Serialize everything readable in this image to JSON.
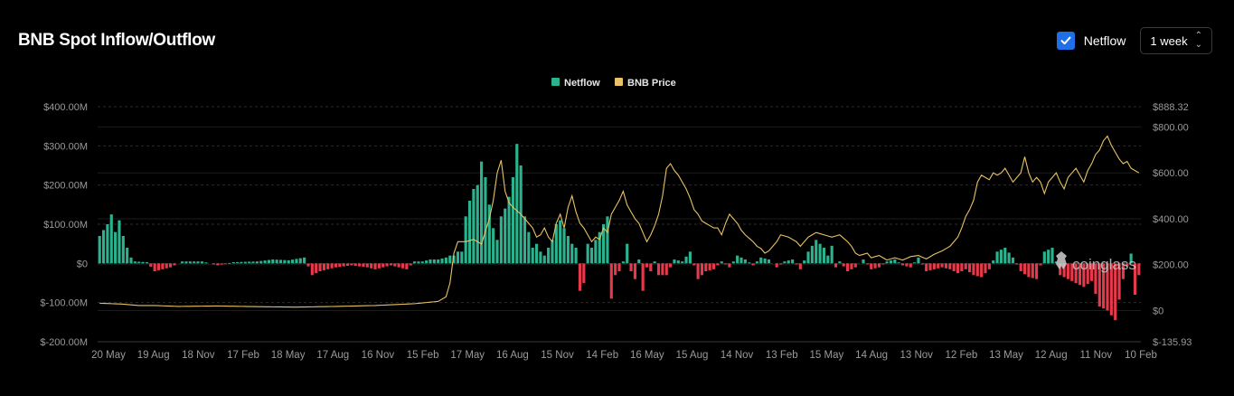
{
  "header": {
    "title": "BNB Spot Inflow/Outflow",
    "netflow_toggle_label": "Netflow",
    "netflow_checked": true,
    "interval_value": "1 week"
  },
  "colors": {
    "background": "#000000",
    "positive": "#2bb38f",
    "negative": "#e8394b",
    "price": "#e8c265",
    "grid": "#2c2c2c",
    "axis_text": "#9a9a9a",
    "checkbox": "#1f6fe8"
  },
  "watermark": "coinglass",
  "chart_data": {
    "type": "bar",
    "legend": [
      {
        "name": "Netflow",
        "color": "#2bb38f"
      },
      {
        "name": "BNB Price",
        "color": "#e8c265"
      }
    ],
    "legend_position": "top-center",
    "grid": true,
    "x_tick_labels": [
      "20 May",
      "19 Aug",
      "18 Nov",
      "17 Feb",
      "18 May",
      "17 Aug",
      "16 Nov",
      "15 Feb",
      "17 May",
      "16 Aug",
      "15 Nov",
      "14 Feb",
      "16 May",
      "15 Aug",
      "14 Nov",
      "13 Feb",
      "15 May",
      "14 Aug",
      "13 Nov",
      "12 Feb",
      "13 May",
      "12 Aug",
      "11 Nov",
      "10 Feb"
    ],
    "y_left": {
      "ticks": [
        "$400.00M",
        "$300.00M",
        "$200.00M",
        "$100.00M",
        "$0",
        "$-100.00M",
        "$-200.00M"
      ],
      "min": -200,
      "max": 400,
      "unit": "M USD"
    },
    "y_right": {
      "ticks": [
        "$888.32",
        "$800.00",
        "$600.00",
        "$400.00",
        "$200.00",
        "$0",
        "$-135.93"
      ],
      "min": -135.93,
      "max": 888.32
    },
    "series": [
      {
        "name": "Netflow",
        "type": "bar",
        "unit": "M USD",
        "anchors": [
          [
            0,
            70
          ],
          [
            2,
            100
          ],
          [
            3,
            125
          ],
          [
            4,
            80
          ],
          [
            5,
            110
          ],
          [
            6,
            70
          ],
          [
            7,
            40
          ],
          [
            8,
            15
          ],
          [
            9,
            5
          ],
          [
            12,
            3
          ],
          [
            14,
            -20
          ],
          [
            18,
            -10
          ],
          [
            21,
            5
          ],
          [
            26,
            5
          ],
          [
            30,
            -5
          ],
          [
            34,
            3
          ],
          [
            40,
            5
          ],
          [
            44,
            10
          ],
          [
            48,
            8
          ],
          [
            52,
            15
          ],
          [
            54,
            -30
          ],
          [
            56,
            -20
          ],
          [
            60,
            -10
          ],
          [
            64,
            -5
          ],
          [
            68,
            -10
          ],
          [
            70,
            -15
          ],
          [
            72,
            -10
          ],
          [
            74,
            -5
          ],
          [
            76,
            -10
          ],
          [
            78,
            -15
          ],
          [
            80,
            5
          ],
          [
            82,
            5
          ],
          [
            84,
            10
          ],
          [
            86,
            10
          ],
          [
            88,
            15
          ],
          [
            89,
            20
          ],
          [
            90,
            20
          ],
          [
            91,
            30
          ],
          [
            92,
            30
          ],
          [
            93,
            120
          ],
          [
            94,
            160
          ],
          [
            95,
            190
          ],
          [
            96,
            200
          ],
          [
            97,
            260
          ],
          [
            98,
            220
          ],
          [
            99,
            150
          ],
          [
            100,
            90
          ],
          [
            101,
            60
          ],
          [
            102,
            120
          ],
          [
            103,
            140
          ],
          [
            104,
            170
          ],
          [
            105,
            220
          ],
          [
            106,
            305
          ],
          [
            107,
            250
          ],
          [
            108,
            120
          ],
          [
            109,
            80
          ],
          [
            110,
            40
          ],
          [
            111,
            50
          ],
          [
            112,
            30
          ],
          [
            113,
            20
          ],
          [
            114,
            40
          ],
          [
            115,
            60
          ],
          [
            116,
            100
          ],
          [
            117,
            110
          ],
          [
            118,
            90
          ],
          [
            119,
            70
          ],
          [
            120,
            50
          ],
          [
            121,
            40
          ],
          [
            122,
            -70
          ],
          [
            123,
            -50
          ],
          [
            124,
            50
          ],
          [
            125,
            40
          ],
          [
            126,
            60
          ],
          [
            127,
            80
          ],
          [
            128,
            100
          ],
          [
            129,
            120
          ],
          [
            130,
            -90
          ],
          [
            131,
            -30
          ],
          [
            132,
            -20
          ],
          [
            133,
            5
          ],
          [
            134,
            50
          ],
          [
            135,
            -20
          ],
          [
            136,
            -40
          ],
          [
            137,
            10
          ],
          [
            138,
            -70
          ],
          [
            139,
            -10
          ],
          [
            140,
            -20
          ],
          [
            141,
            5
          ],
          [
            142,
            -30
          ],
          [
            144,
            -30
          ],
          [
            146,
            10
          ],
          [
            148,
            5
          ],
          [
            150,
            30
          ],
          [
            152,
            -40
          ],
          [
            154,
            -20
          ],
          [
            156,
            -15
          ],
          [
            158,
            5
          ],
          [
            160,
            -10
          ],
          [
            162,
            20
          ],
          [
            164,
            10
          ],
          [
            166,
            -5
          ],
          [
            168,
            15
          ],
          [
            170,
            10
          ],
          [
            172,
            -10
          ],
          [
            174,
            5
          ],
          [
            176,
            10
          ],
          [
            178,
            -15
          ],
          [
            180,
            30
          ],
          [
            182,
            60
          ],
          [
            184,
            40
          ],
          [
            185,
            20
          ],
          [
            186,
            45
          ],
          [
            187,
            -10
          ],
          [
            188,
            5
          ],
          [
            190,
            -20
          ],
          [
            192,
            -10
          ],
          [
            194,
            10
          ],
          [
            196,
            -15
          ],
          [
            198,
            -10
          ],
          [
            200,
            5
          ],
          [
            202,
            10
          ],
          [
            204,
            -5
          ],
          [
            206,
            -10
          ],
          [
            208,
            15
          ],
          [
            210,
            -20
          ],
          [
            212,
            -15
          ],
          [
            214,
            -10
          ],
          [
            216,
            -15
          ],
          [
            218,
            -25
          ],
          [
            220,
            -15
          ],
          [
            222,
            -30
          ],
          [
            224,
            -35
          ],
          [
            226,
            -15
          ],
          [
            228,
            30
          ],
          [
            230,
            40
          ],
          [
            232,
            15
          ],
          [
            234,
            -20
          ],
          [
            236,
            -35
          ],
          [
            238,
            -40
          ],
          [
            240,
            30
          ],
          [
            242,
            40
          ],
          [
            244,
            -30
          ],
          [
            246,
            -40
          ],
          [
            248,
            -50
          ],
          [
            250,
            -60
          ],
          [
            252,
            -45
          ],
          [
            254,
            -110
          ],
          [
            256,
            -120
          ],
          [
            258,
            -145
          ],
          [
            260,
            -40
          ],
          [
            262,
            25
          ],
          [
            263,
            -80
          ],
          [
            264,
            -30
          ]
        ]
      },
      {
        "name": "BNB Price",
        "type": "line",
        "unit": "USD",
        "anchors": [
          [
            0,
            32
          ],
          [
            6,
            28
          ],
          [
            10,
            22
          ],
          [
            14,
            22
          ],
          [
            20,
            18
          ],
          [
            30,
            20
          ],
          [
            40,
            17
          ],
          [
            50,
            15
          ],
          [
            60,
            18
          ],
          [
            70,
            22
          ],
          [
            80,
            30
          ],
          [
            86,
            40
          ],
          [
            88,
            60
          ],
          [
            89,
            120
          ],
          [
            90,
            250
          ],
          [
            91,
            300
          ],
          [
            93,
            300
          ],
          [
            95,
            310
          ],
          [
            97,
            290
          ],
          [
            99,
            400
          ],
          [
            100,
            480
          ],
          [
            101,
            600
          ],
          [
            102,
            655
          ],
          [
            103,
            520
          ],
          [
            104,
            470
          ],
          [
            105,
            450
          ],
          [
            107,
            420
          ],
          [
            109,
            380
          ],
          [
            110,
            360
          ],
          [
            111,
            320
          ],
          [
            112,
            330
          ],
          [
            113,
            360
          ],
          [
            114,
            320
          ],
          [
            115,
            300
          ],
          [
            116,
            380
          ],
          [
            117,
            420
          ],
          [
            118,
            360
          ],
          [
            119,
            450
          ],
          [
            120,
            500
          ],
          [
            121,
            430
          ],
          [
            122,
            380
          ],
          [
            123,
            360
          ],
          [
            124,
            330
          ],
          [
            125,
            300
          ],
          [
            126,
            320
          ],
          [
            127,
            310
          ],
          [
            128,
            360
          ],
          [
            129,
            340
          ],
          [
            130,
            420
          ],
          [
            131,
            450
          ],
          [
            132,
            480
          ],
          [
            133,
            520
          ],
          [
            134,
            460
          ],
          [
            135,
            430
          ],
          [
            136,
            400
          ],
          [
            137,
            380
          ],
          [
            138,
            340
          ],
          [
            139,
            300
          ],
          [
            140,
            330
          ],
          [
            141,
            370
          ],
          [
            142,
            420
          ],
          [
            143,
            500
          ],
          [
            144,
            620
          ],
          [
            145,
            640
          ],
          [
            146,
            610
          ],
          [
            147,
            590
          ],
          [
            148,
            560
          ],
          [
            149,
            530
          ],
          [
            150,
            490
          ],
          [
            151,
            440
          ],
          [
            152,
            420
          ],
          [
            153,
            390
          ],
          [
            154,
            380
          ],
          [
            155,
            370
          ],
          [
            156,
            360
          ],
          [
            157,
            360
          ],
          [
            158,
            330
          ],
          [
            159,
            380
          ],
          [
            160,
            420
          ],
          [
            161,
            400
          ],
          [
            162,
            380
          ],
          [
            163,
            350
          ],
          [
            164,
            330
          ],
          [
            166,
            300
          ],
          [
            167,
            280
          ],
          [
            168,
            270
          ],
          [
            169,
            250
          ],
          [
            170,
            260
          ],
          [
            171,
            280
          ],
          [
            172,
            300
          ],
          [
            173,
            330
          ],
          [
            175,
            320
          ],
          [
            177,
            300
          ],
          [
            178,
            280
          ],
          [
            180,
            320
          ],
          [
            182,
            340
          ],
          [
            184,
            330
          ],
          [
            186,
            320
          ],
          [
            188,
            330
          ],
          [
            190,
            300
          ],
          [
            191,
            280
          ],
          [
            192,
            250
          ],
          [
            193,
            240
          ],
          [
            195,
            250
          ],
          [
            196,
            230
          ],
          [
            198,
            240
          ],
          [
            200,
            220
          ],
          [
            202,
            230
          ],
          [
            204,
            220
          ],
          [
            206,
            235
          ],
          [
            208,
            240
          ],
          [
            210,
            225
          ],
          [
            212,
            245
          ],
          [
            214,
            260
          ],
          [
            216,
            280
          ],
          [
            217,
            300
          ],
          [
            218,
            320
          ],
          [
            219,
            360
          ],
          [
            220,
            410
          ],
          [
            221,
            440
          ],
          [
            222,
            480
          ],
          [
            223,
            560
          ],
          [
            224,
            590
          ],
          [
            225,
            580
          ],
          [
            226,
            570
          ],
          [
            227,
            600
          ],
          [
            228,
            590
          ],
          [
            229,
            600
          ],
          [
            230,
            620
          ],
          [
            231,
            590
          ],
          [
            232,
            560
          ],
          [
            233,
            580
          ],
          [
            234,
            600
          ],
          [
            235,
            670
          ],
          [
            236,
            600
          ],
          [
            237,
            560
          ],
          [
            238,
            580
          ],
          [
            239,
            560
          ],
          [
            240,
            510
          ],
          [
            241,
            560
          ],
          [
            242,
            580
          ],
          [
            243,
            600
          ],
          [
            244,
            560
          ],
          [
            245,
            530
          ],
          [
            246,
            580
          ],
          [
            247,
            600
          ],
          [
            248,
            620
          ],
          [
            249,
            590
          ],
          [
            250,
            560
          ],
          [
            251,
            610
          ],
          [
            252,
            640
          ],
          [
            253,
            680
          ],
          [
            254,
            700
          ],
          [
            255,
            740
          ],
          [
            256,
            760
          ],
          [
            257,
            720
          ],
          [
            258,
            690
          ],
          [
            259,
            660
          ],
          [
            260,
            640
          ],
          [
            261,
            650
          ],
          [
            262,
            620
          ],
          [
            263,
            610
          ],
          [
            264,
            600
          ]
        ]
      }
    ]
  }
}
